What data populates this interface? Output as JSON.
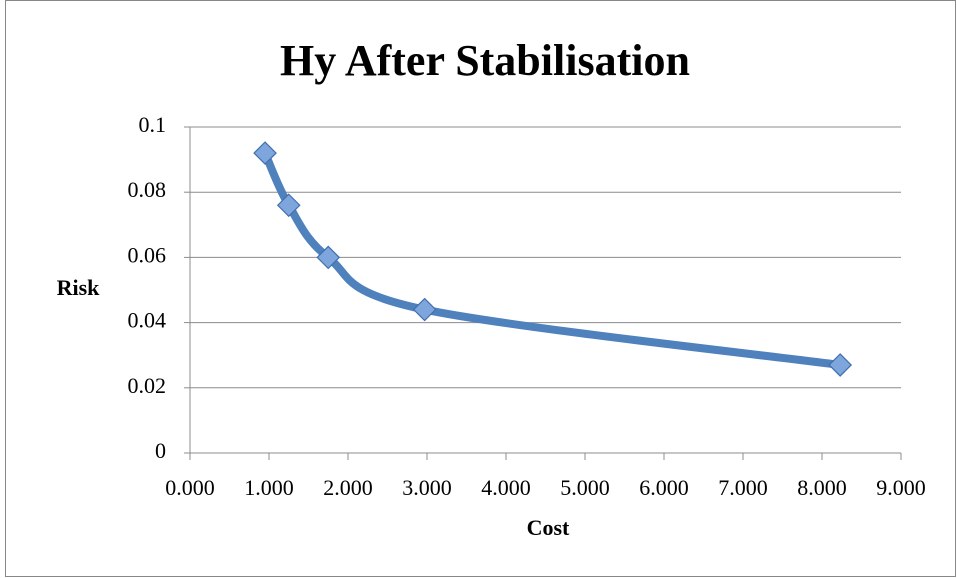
{
  "chart_data": {
    "type": "scatter-smooth",
    "title": "Hy After Stabilisation",
    "x_label": "Cost",
    "y_label": "Risk",
    "series": [
      {
        "name": "Hy",
        "color": "#4f81bd",
        "marker_color": "#7ea6dc",
        "x": [
          0.95,
          1.25,
          1.75,
          2.97,
          8.23
        ],
        "values": [
          0.092,
          0.076,
          0.06,
          0.044,
          0.027
        ]
      }
    ],
    "xlim": [
      0,
      9
    ],
    "xticks": [
      {
        "value": 0,
        "label": "0.000"
      },
      {
        "value": 1,
        "label": "1.000"
      },
      {
        "value": 2,
        "label": "2.000"
      },
      {
        "value": 3,
        "label": "3.000"
      },
      {
        "value": 4,
        "label": "4.000"
      },
      {
        "value": 5,
        "label": "5.000"
      },
      {
        "value": 6,
        "label": "6.000"
      },
      {
        "value": 7,
        "label": "7.000"
      },
      {
        "value": 8,
        "label": "8.000"
      },
      {
        "value": 9,
        "label": "9.000"
      }
    ],
    "ylim": [
      0,
      0.1
    ],
    "yticks": [
      0,
      0.02,
      0.04,
      0.06,
      0.08,
      0.1
    ],
    "grid": true
  }
}
